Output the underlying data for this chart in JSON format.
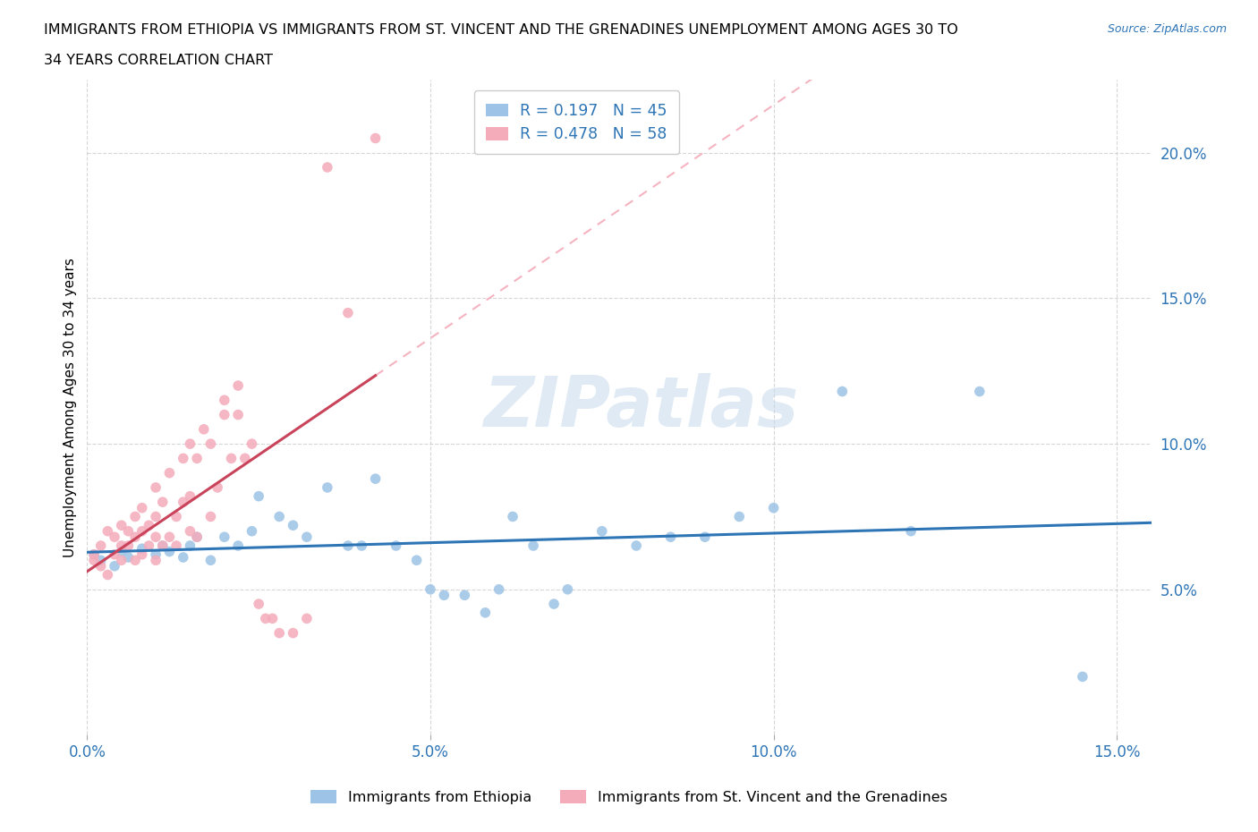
{
  "title_line1": "IMMIGRANTS FROM ETHIOPIA VS IMMIGRANTS FROM ST. VINCENT AND THE GRENADINES UNEMPLOYMENT AMONG AGES 30 TO",
  "title_line2": "34 YEARS CORRELATION CHART",
  "source": "Source: ZipAtlas.com",
  "ylabel": "Unemployment Among Ages 30 to 34 years",
  "xlim": [
    0.0,
    0.155
  ],
  "ylim": [
    0.0,
    0.225
  ],
  "xtick_labels": [
    "0.0%",
    "5.0%",
    "10.0%",
    "15.0%"
  ],
  "xtick_vals": [
    0.0,
    0.05,
    0.1,
    0.15
  ],
  "ytick_labels": [
    "5.0%",
    "10.0%",
    "15.0%",
    "20.0%"
  ],
  "ytick_vals": [
    0.05,
    0.1,
    0.15,
    0.2
  ],
  "watermark": "ZIPatlas",
  "legend_label1": "Immigrants from Ethiopia",
  "legend_label2": "Immigrants from St. Vincent and the Grenadines",
  "r1": 0.197,
  "n1": 45,
  "r2": 0.478,
  "n2": 58,
  "color1": "#9DC3E6",
  "color2": "#F4ABBA",
  "trendline1_color": "#2E75B6",
  "trendline2_color": "#C9445A",
  "trendline2_dashed_color": "#F4ABBA",
  "ethiopia_x": [
    0.001,
    0.002,
    0.004,
    0.005,
    0.006,
    0.008,
    0.01,
    0.011,
    0.012,
    0.014,
    0.015,
    0.016,
    0.018,
    0.02,
    0.022,
    0.024,
    0.025,
    0.028,
    0.03,
    0.032,
    0.035,
    0.038,
    0.04,
    0.042,
    0.045,
    0.048,
    0.05,
    0.052,
    0.055,
    0.058,
    0.06,
    0.062,
    0.065,
    0.068,
    0.07,
    0.075,
    0.08,
    0.085,
    0.09,
    0.095,
    0.1,
    0.11,
    0.12,
    0.13,
    0.145
  ],
  "ethiopia_y": [
    0.062,
    0.06,
    0.058,
    0.063,
    0.061,
    0.064,
    0.062,
    0.065,
    0.063,
    0.061,
    0.065,
    0.068,
    0.06,
    0.068,
    0.065,
    0.07,
    0.082,
    0.075,
    0.072,
    0.068,
    0.085,
    0.065,
    0.065,
    0.088,
    0.065,
    0.06,
    0.05,
    0.048,
    0.048,
    0.042,
    0.05,
    0.075,
    0.065,
    0.045,
    0.05,
    0.07,
    0.065,
    0.068,
    0.068,
    0.075,
    0.078,
    0.118,
    0.07,
    0.118,
    0.02
  ],
  "stv_x": [
    0.001,
    0.001,
    0.002,
    0.002,
    0.003,
    0.003,
    0.004,
    0.004,
    0.005,
    0.005,
    0.005,
    0.006,
    0.006,
    0.007,
    0.007,
    0.007,
    0.008,
    0.008,
    0.008,
    0.009,
    0.009,
    0.01,
    0.01,
    0.01,
    0.01,
    0.011,
    0.011,
    0.012,
    0.012,
    0.013,
    0.013,
    0.014,
    0.014,
    0.015,
    0.015,
    0.015,
    0.016,
    0.016,
    0.017,
    0.018,
    0.018,
    0.019,
    0.02,
    0.02,
    0.021,
    0.022,
    0.022,
    0.023,
    0.024,
    0.025,
    0.026,
    0.027,
    0.028,
    0.03,
    0.032,
    0.035,
    0.038,
    0.042
  ],
  "stv_y": [
    0.06,
    0.062,
    0.058,
    0.065,
    0.055,
    0.07,
    0.062,
    0.068,
    0.06,
    0.065,
    0.072,
    0.065,
    0.07,
    0.06,
    0.068,
    0.075,
    0.062,
    0.07,
    0.078,
    0.065,
    0.072,
    0.06,
    0.068,
    0.075,
    0.085,
    0.065,
    0.08,
    0.068,
    0.09,
    0.065,
    0.075,
    0.08,
    0.095,
    0.07,
    0.082,
    0.1,
    0.068,
    0.095,
    0.105,
    0.075,
    0.1,
    0.085,
    0.11,
    0.115,
    0.095,
    0.11,
    0.12,
    0.095,
    0.1,
    0.045,
    0.04,
    0.04,
    0.035,
    0.035,
    0.04,
    0.195,
    0.145,
    0.205
  ]
}
